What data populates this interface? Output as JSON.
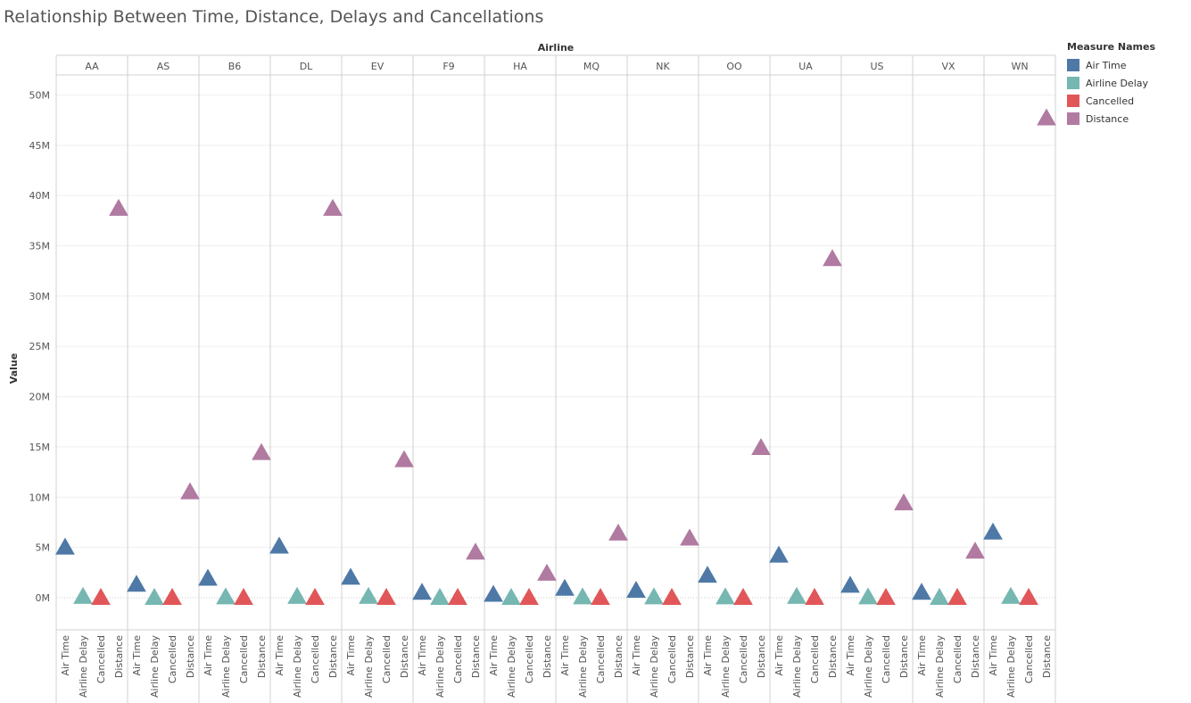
{
  "title": "Relationship Between Time, Distance, Delays and Cancellations",
  "colors": {
    "Air Time": "#4e79a7",
    "Airline Delay": "#76b7b2",
    "Cancelled": "#e15759",
    "Distance": "#b07aa1"
  },
  "legend": {
    "title": "Measure Names",
    "placement": "right",
    "items": [
      "Air Time",
      "Airline Delay",
      "Cancelled",
      "Distance"
    ]
  },
  "chart_data": {
    "type": "scatter",
    "mark": "triangle",
    "column_header_title": "Airline",
    "ylabel": "Value",
    "ylim": [
      -3200000,
      52000000
    ],
    "yticks": [
      0,
      5000000,
      10000000,
      15000000,
      20000000,
      25000000,
      30000000,
      35000000,
      40000000,
      45000000,
      50000000
    ],
    "ytick_labels": [
      "0M",
      "5M",
      "10M",
      "15M",
      "20M",
      "25M",
      "30M",
      "35M",
      "40M",
      "45M",
      "50M"
    ],
    "grid": true,
    "measures": [
      "Air Time",
      "Airline Delay",
      "Cancelled",
      "Distance"
    ],
    "airlines": [
      "AA",
      "AS",
      "B6",
      "DL",
      "EV",
      "F9",
      "HA",
      "MQ",
      "NK",
      "OO",
      "UA",
      "US",
      "VX",
      "WN"
    ],
    "series": [
      {
        "name": "Air Time",
        "values": [
          5000000,
          1300000,
          1900000,
          5100000,
          2000000,
          500000,
          300000,
          900000,
          700000,
          2200000,
          4200000,
          1200000,
          500000,
          6500000
        ]
      },
      {
        "name": "Airline Delay",
        "values": [
          100000,
          0,
          50000,
          100000,
          100000,
          0,
          0,
          50000,
          50000,
          50000,
          100000,
          50000,
          0,
          100000
        ]
      },
      {
        "name": "Cancelled",
        "values": [
          0,
          0,
          0,
          0,
          0,
          0,
          0,
          0,
          0,
          0,
          0,
          0,
          0,
          0
        ]
      },
      {
        "name": "Distance",
        "values": [
          38700000,
          10500000,
          14400000,
          38700000,
          13700000,
          4500000,
          2400000,
          6400000,
          5900000,
          14900000,
          33700000,
          9400000,
          4600000,
          47700000
        ]
      }
    ]
  }
}
